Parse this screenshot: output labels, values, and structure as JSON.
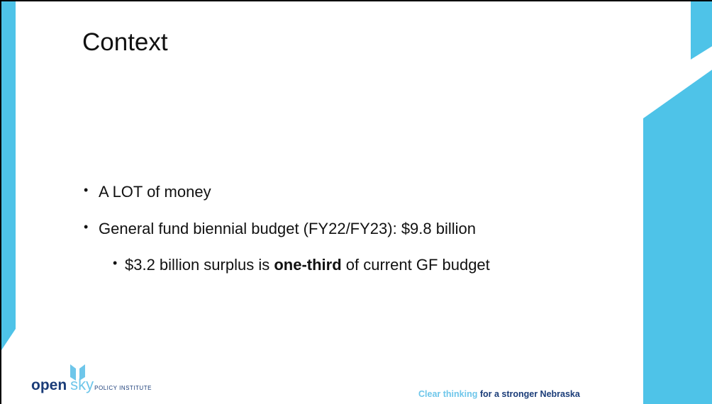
{
  "title": "Context",
  "bullets": [
    {
      "text": "A LOT of money"
    },
    {
      "text": "General fund biennial budget (FY22/FY23): $9.8 billion"
    },
    {
      "parts": [
        "$3.2 billion surplus is ",
        "one-third",
        " of current GF budget"
      ]
    }
  ],
  "logo": {
    "word1": "open",
    "word2": "sky",
    "sub": "POLICY INSTITUTE"
  },
  "tagline": [
    "Clear thinking",
    " for a stronger Nebraska"
  ]
}
